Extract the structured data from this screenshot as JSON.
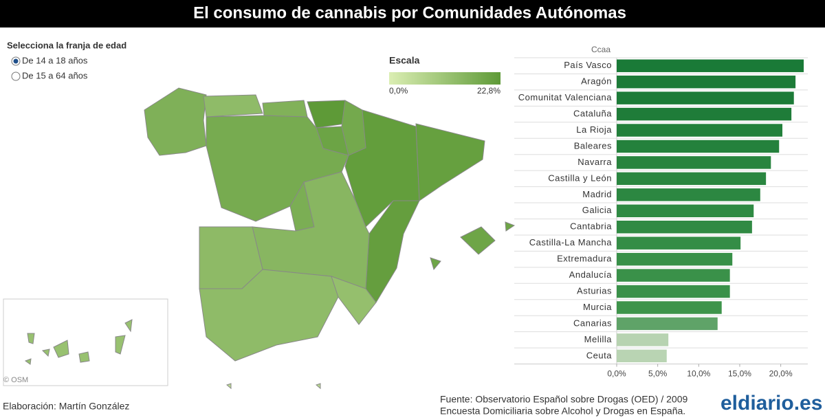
{
  "header": {
    "title": "El consumo de cannabis por Comunidades Autónomas"
  },
  "filter": {
    "label": "Selecciona la franja de edad",
    "options": [
      "De 14 a 18 años",
      "De 15 a 64 años"
    ],
    "selected": 0
  },
  "scale": {
    "title": "Escala",
    "min_label": "0,0%",
    "max_label": "22,8%",
    "colors": [
      "#dbeeb3",
      "#5e9a37"
    ]
  },
  "map": {
    "credit": "© OSM"
  },
  "chart_data": {
    "type": "bar",
    "orientation": "horizontal",
    "axis_title": "Ccaa",
    "categories": [
      "País Vasco",
      "Aragón",
      "Comunitat Valenciana",
      "Cataluña",
      "La Rioja",
      "Baleares",
      "Navarra",
      "Castilla y León",
      "Madrid",
      "Galicia",
      "Cantabria",
      "Castilla-La Mancha",
      "Extremadura",
      "Andalucía",
      "Asturias",
      "Murcia",
      "Canarias",
      "Melilla",
      "Ceuta"
    ],
    "values": [
      22.8,
      21.8,
      21.6,
      21.3,
      20.2,
      19.8,
      18.8,
      18.2,
      17.5,
      16.7,
      16.5,
      15.1,
      14.1,
      13.8,
      13.8,
      12.8,
      12.3,
      6.3,
      6.1
    ],
    "colors": [
      "#1a7a37",
      "#1d7b38",
      "#1d7b38",
      "#1f7c39",
      "#22803b",
      "#24813c",
      "#28843e",
      "#2a8640",
      "#2c8741",
      "#2f8a43",
      "#308a43",
      "#348d46",
      "#389048",
      "#3a9149",
      "#3a9149",
      "#3e944b",
      "#5fa368",
      "#b7d3b1",
      "#b9d4b3"
    ],
    "xlim": [
      0,
      23.3
    ],
    "xticks": [
      {
        "value": 0,
        "label": "0,0%"
      },
      {
        "value": 5,
        "label": "5,0%"
      },
      {
        "value": 10,
        "label": "10,0%"
      },
      {
        "value": 15,
        "label": "15,0%"
      },
      {
        "value": 20,
        "label": "20,0%"
      }
    ]
  },
  "footer": {
    "author": "Elaboración: Martín González",
    "source_line1": "Fuente: Observatorio Español sobre Drogas (OED) /  2009",
    "source_line2": "Encuesta Domiciliaria sobre Alcohol y Drogas en España.",
    "logo": "eldiario.es"
  }
}
